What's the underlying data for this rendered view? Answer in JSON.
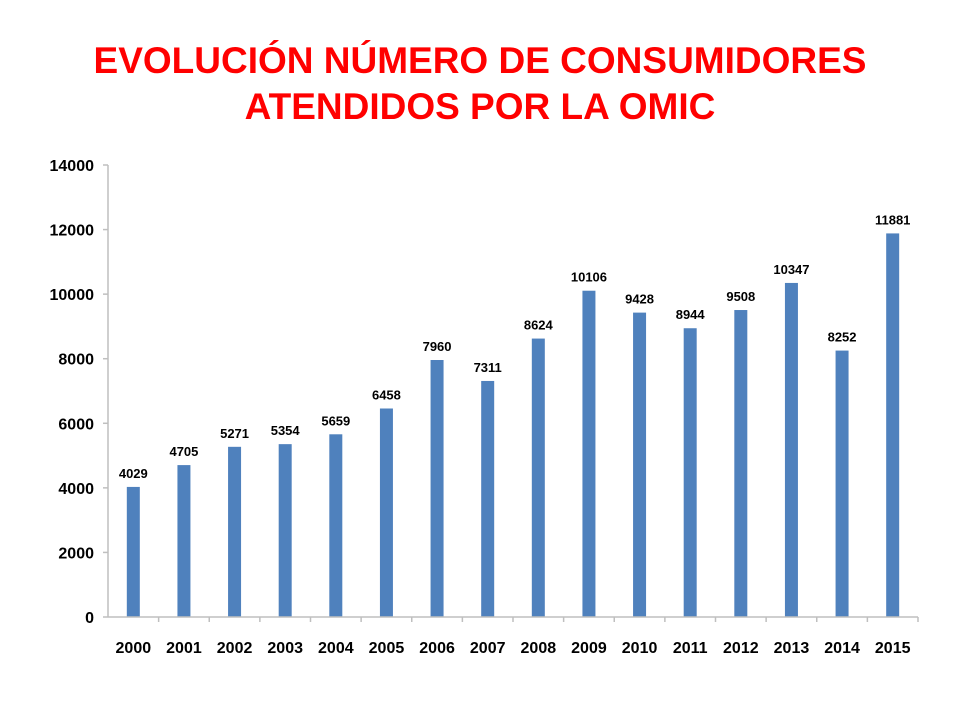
{
  "title": {
    "line1": "EVOLUCIÓN NÚMERO DE CONSUMIDORES",
    "line2": "ATENDIDOS POR LA OMIC"
  },
  "colors": {
    "title": "#ff0000",
    "bar": "#4f81bd",
    "axis": "#bfbfbf"
  },
  "chart_data": {
    "type": "bar",
    "title": "EVOLUCIÓN NÚMERO DE CONSUMIDORES ATENDIDOS POR LA OMIC",
    "xlabel": "",
    "ylabel": "",
    "categories": [
      "2000",
      "2001",
      "2002",
      "2003",
      "2004",
      "2005",
      "2006",
      "2007",
      "2008",
      "2009",
      "2010",
      "2011",
      "2012",
      "2013",
      "2014",
      "2015"
    ],
    "values": [
      4029,
      4705,
      5271,
      5354,
      5659,
      6458,
      7960,
      7311,
      8624,
      10106,
      9428,
      8944,
      9508,
      10347,
      8252,
      11881
    ],
    "ylim": [
      0,
      14000
    ],
    "yticks": [
      0,
      2000,
      4000,
      6000,
      8000,
      10000,
      12000,
      14000
    ],
    "data_labels": true,
    "grid": false,
    "legend": "none"
  }
}
